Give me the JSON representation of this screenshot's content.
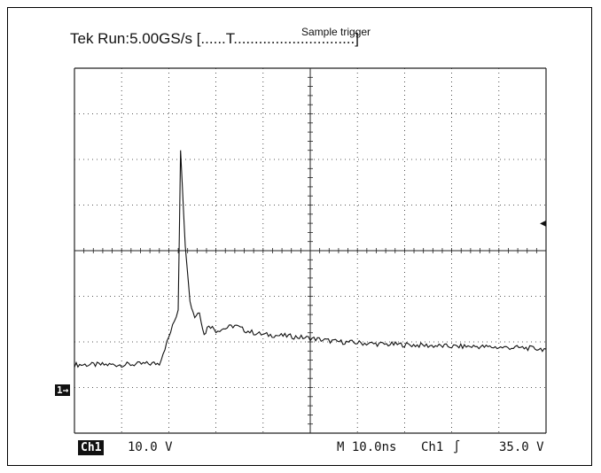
{
  "header": {
    "status": "Tek Run:5.00GS/s",
    "record": "[......T.............................]",
    "trigger_note": "Sample trigger"
  },
  "footer": {
    "channel": "Ch1",
    "volts_per_div": "10.0 V",
    "timebase": "M 10.0ns",
    "trigger_source": "Ch1",
    "trigger_slope_icon": "rising-edge-icon",
    "trigger_level": "35.0 V"
  },
  "markers": {
    "ground_marker": "1→",
    "trigger_level_arrow": "◂"
  },
  "chart_data": {
    "type": "line",
    "grid": true,
    "xlabel": "",
    "ylabel": "",
    "xlim": [
      0,
      100
    ],
    "ylim": [
      -15,
      65
    ],
    "x_unit": "ns",
    "y_unit": "V",
    "series": [
      {
        "x": [
          0,
          10,
          18,
          20,
          22,
          22.5,
          23.5,
          24.5,
          25.5,
          26.5,
          27.5,
          28.5,
          30,
          32,
          34,
          36,
          38,
          40,
          45,
          50,
          55,
          60,
          65,
          70,
          75,
          80,
          85,
          90,
          95,
          100
        ],
        "y": [
          0,
          0,
          0.3,
          6,
          12,
          47,
          26,
          13.8,
          10.5,
          11.7,
          6.5,
          8.8,
          7.5,
          8.0,
          8.6,
          7.6,
          7.0,
          6.6,
          6.3,
          5.8,
          5.1,
          4.8,
          4.5,
          4.4,
          4.2,
          4.0,
          4.0,
          3.8,
          3.7,
          3.4
        ]
      }
    ]
  }
}
